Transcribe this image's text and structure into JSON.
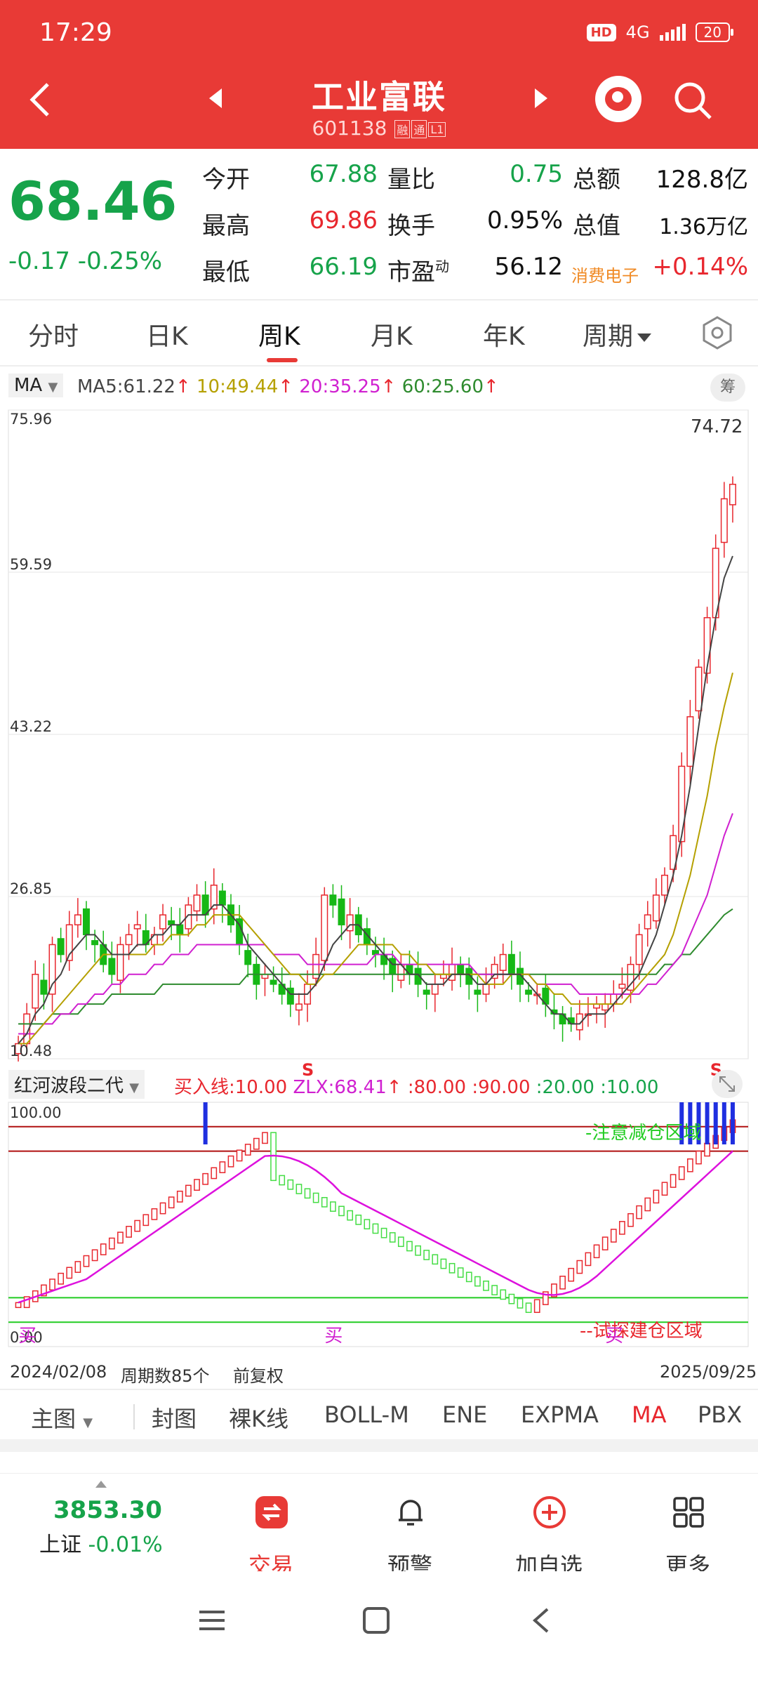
{
  "status": {
    "time": "17:29",
    "hd": "HD",
    "network": "4G",
    "battery": "20"
  },
  "header": {
    "name": "工业富联",
    "code": "601138",
    "tags": [
      "融",
      "通",
      "L1"
    ]
  },
  "quote": {
    "price": "68.46",
    "change": "-0.17",
    "change_pct": "-0.25%",
    "rows": [
      {
        "l1": "今开",
        "v1": "67.88",
        "l2": "量比",
        "v2": "0.75",
        "l3": "总额",
        "v3": "128.8亿"
      },
      {
        "l1": "最高",
        "v1": "69.86",
        "l2": "换手",
        "v2": "0.95%",
        "l3": "总值",
        "v3": "1.36万亿"
      },
      {
        "l1": "最低",
        "v1": "66.19",
        "l2": "市盈",
        "l2_sup": "动",
        "v2": "56.12",
        "l3": "消费电子",
        "v3": "+0.14%"
      }
    ]
  },
  "period_tabs": [
    "分时",
    "日K",
    "周K",
    "月K",
    "年K",
    "周期"
  ],
  "ma": {
    "select": "MA",
    "ma5": "MA5:61.22",
    "ma10": "10:49.44",
    "ma20": "20:35.25",
    "ma60": "60:25.60",
    "arrow": "↑",
    "chou": "筹"
  },
  "indicator": {
    "select": "红河波段二代",
    "buy_line": "买入线:10.00",
    "zlx": "ZLX:68.41",
    "arrow": "↑",
    "levels": [
      ":80.00",
      ":90.00",
      ":20.00",
      ":10.00"
    ],
    "zone_top": "-注意减仓区域",
    "zone_bottom": "--试探建仓区域",
    "axis_top": "100.00",
    "axis_bottom": "0.00",
    "buy_marks": [
      "买",
      "买",
      "买"
    ],
    "sell_marks": [
      "S",
      "S"
    ]
  },
  "chart_data": {
    "type": "candlestick",
    "yticks": [
      "75.96",
      "59.59",
      "43.22",
      "26.85",
      "10.48"
    ],
    "max_label": "74.72",
    "ylim": [
      10.48,
      75.96
    ],
    "closes": [
      12,
      15,
      19,
      17,
      22,
      21,
      24,
      25,
      23,
      22,
      20,
      19,
      22,
      23,
      24,
      22,
      23,
      25,
      24,
      23,
      26,
      27,
      25,
      28,
      26,
      24,
      22,
      20,
      18,
      19,
      18,
      17,
      16,
      16,
      18,
      21,
      27,
      26,
      24,
      25,
      23,
      22,
      21,
      20,
      19,
      20,
      19,
      18,
      17,
      18,
      19,
      20,
      19,
      18,
      17,
      18,
      20,
      21,
      19,
      18,
      17,
      17,
      16,
      15,
      14,
      14,
      15,
      15,
      16,
      16,
      17,
      18,
      20,
      23,
      25,
      27,
      29,
      33,
      40,
      45,
      50,
      55,
      62,
      67,
      68.46
    ],
    "ma5": [
      12,
      13,
      15,
      16,
      18,
      19,
      21,
      22,
      23,
      23,
      22,
      21,
      21,
      21,
      22,
      22,
      23,
      23,
      24,
      24,
      25,
      25,
      25,
      26,
      26,
      25,
      24,
      22,
      21,
      20,
      19,
      18,
      17,
      17,
      17,
      18,
      20,
      22,
      23,
      24,
      24,
      23,
      22,
      21,
      20,
      20,
      19,
      19,
      18,
      18,
      18,
      19,
      19,
      19,
      18,
      18,
      19,
      19,
      19,
      19,
      18,
      17,
      16,
      15,
      15,
      14,
      14,
      15,
      15,
      15,
      16,
      17,
      18,
      19,
      21,
      23,
      26,
      29,
      33,
      38,
      44,
      50,
      55,
      59,
      61.22
    ],
    "ma10": [
      12,
      12,
      13,
      14,
      15,
      16,
      17,
      18,
      19,
      20,
      21,
      21,
      21,
      21,
      21,
      21,
      22,
      22,
      23,
      23,
      23,
      24,
      24,
      25,
      25,
      25,
      25,
      24,
      23,
      22,
      21,
      20,
      19,
      19,
      18,
      18,
      19,
      19,
      20,
      21,
      22,
      22,
      22,
      22,
      22,
      21,
      21,
      20,
      20,
      19,
      19,
      19,
      19,
      19,
      19,
      18,
      18,
      18,
      19,
      19,
      19,
      18,
      18,
      17,
      17,
      16,
      16,
      16,
      16,
      16,
      16,
      16,
      17,
      18,
      19,
      20,
      21,
      23,
      26,
      29,
      33,
      37,
      42,
      46,
      49.44
    ],
    "ma20": [
      13,
      13,
      13,
      14,
      14,
      15,
      15,
      16,
      16,
      17,
      17,
      18,
      18,
      19,
      19,
      19,
      20,
      20,
      21,
      21,
      21,
      22,
      22,
      22,
      22,
      22,
      22,
      22,
      22,
      22,
      21,
      21,
      21,
      21,
      20,
      20,
      20,
      20,
      20,
      20,
      20,
      20,
      21,
      21,
      21,
      20,
      20,
      20,
      20,
      20,
      20,
      20,
      20,
      20,
      19,
      19,
      19,
      19,
      19,
      19,
      19,
      18,
      18,
      18,
      18,
      18,
      17,
      17,
      17,
      17,
      17,
      17,
      17,
      17,
      18,
      18,
      19,
      20,
      21,
      23,
      25,
      27,
      30,
      33,
      35.25
    ],
    "ma60": [
      14,
      14,
      14,
      14,
      15,
      15,
      15,
      15,
      16,
      16,
      16,
      17,
      17,
      17,
      17,
      17,
      17,
      18,
      18,
      18,
      18,
      18,
      18,
      18,
      18,
      18,
      18,
      19,
      19,
      19,
      19,
      19,
      19,
      19,
      19,
      19,
      19,
      19,
      19,
      19,
      19,
      19,
      19,
      19,
      19,
      19,
      19,
      19,
      19,
      19,
      19,
      19,
      19,
      19,
      19,
      19,
      19,
      19,
      19,
      19,
      19,
      19,
      19,
      19,
      19,
      19,
      19,
      19,
      19,
      19,
      19,
      19,
      19,
      19,
      19,
      19,
      20,
      20,
      21,
      21,
      22,
      23,
      24,
      25,
      25.6
    ]
  },
  "date_row": {
    "start": "2024/02/08",
    "count": "周期数85个",
    "adj": "前复权",
    "end": "2025/09/25"
  },
  "ind_tabs": [
    "主图",
    "封图",
    "裸K线",
    "BOLL-M",
    "ENE",
    "EXPMA",
    "MA",
    "PBX"
  ],
  "bottom_nav": {
    "index_value": "3853.30",
    "index_name": "上证",
    "index_change": "-0.01%",
    "items": [
      "交易",
      "预警",
      "加自选",
      "更多"
    ]
  }
}
